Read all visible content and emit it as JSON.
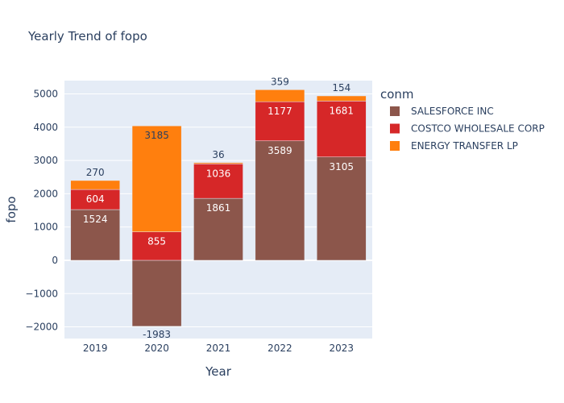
{
  "chart_data": {
    "type": "bar",
    "barmode": "relative",
    "title": "Yearly Trend of fopo",
    "xlabel": "Year",
    "ylabel": "fopo",
    "categories": [
      "2019",
      "2020",
      "2021",
      "2022",
      "2023"
    ],
    "ylim": [
      -2350,
      5400
    ],
    "yticks": [
      -2000,
      -1000,
      0,
      1000,
      2000,
      3000,
      4000,
      5000
    ],
    "ytick_labels": [
      "−2000",
      "−1000",
      "0",
      "1000",
      "2000",
      "3000",
      "4000",
      "5000"
    ],
    "grid": true,
    "legend": {
      "title": "conm",
      "placement": "right"
    },
    "series": [
      {
        "name": "SALESFORCE INC",
        "color": "#8c564b",
        "label_color": "#ffffff",
        "values": [
          1524,
          -1983,
          1861,
          3589,
          3105
        ]
      },
      {
        "name": "COSTCO WHOLESALE CORP",
        "color": "#d62728",
        "label_color": "#ffffff",
        "values": [
          604,
          855,
          1036,
          1177,
          1681
        ]
      },
      {
        "name": "ENERGY TRANSFER LP",
        "color": "#ff7f0e",
        "label_color": "#2a3f5f",
        "values": [
          270,
          3185,
          36,
          359,
          154
        ]
      }
    ]
  }
}
